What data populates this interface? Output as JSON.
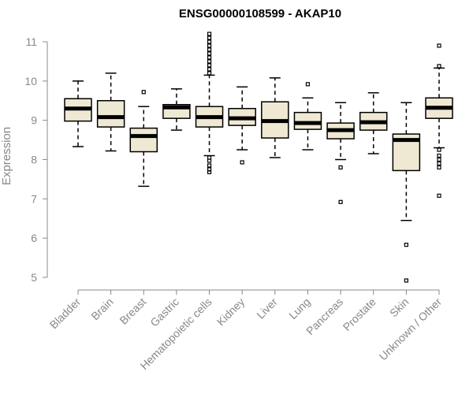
{
  "chart_data": {
    "type": "box",
    "title": "ENSG00000108599 - AKAP10",
    "xlabel": "",
    "ylabel": "Expression",
    "ylim": [
      4.9,
      11.25
    ],
    "yticks": [
      5,
      6,
      7,
      8,
      9,
      10,
      11
    ],
    "grid": false,
    "categories": [
      "Bladder",
      "Brain",
      "Breast",
      "Gastric",
      "Hematopoietic cells",
      "Kidney",
      "Liver",
      "Lung",
      "Pancreas",
      "Prostate",
      "Skin",
      "Unknown / Other"
    ],
    "boxes": [
      {
        "category": "Bladder",
        "whisker_low": 8.33,
        "q1": 8.98,
        "median": 9.3,
        "q3": 9.55,
        "whisker_high": 10.0,
        "outliers": []
      },
      {
        "category": "Brain",
        "whisker_low": 8.22,
        "q1": 8.83,
        "median": 9.08,
        "q3": 9.5,
        "whisker_high": 10.2,
        "outliers": []
      },
      {
        "category": "Breast",
        "whisker_low": 7.32,
        "q1": 8.2,
        "median": 8.6,
        "q3": 8.8,
        "whisker_high": 9.35,
        "outliers": [
          9.72
        ]
      },
      {
        "category": "Gastric",
        "whisker_low": 8.75,
        "q1": 9.05,
        "median": 9.33,
        "q3": 9.4,
        "whisker_high": 9.8,
        "outliers": []
      },
      {
        "category": "Hematopoietic cells",
        "whisker_low": 8.1,
        "q1": 8.83,
        "median": 9.08,
        "q3": 9.35,
        "whisker_high": 10.15,
        "outliers": [
          7.68,
          7.75,
          7.85,
          7.97,
          8.05,
          10.2,
          10.3,
          10.4,
          10.5,
          10.6,
          10.7,
          10.8,
          10.9,
          11.0,
          11.1,
          11.2
        ]
      },
      {
        "category": "Kidney",
        "whisker_low": 8.25,
        "q1": 8.87,
        "median": 9.05,
        "q3": 9.3,
        "whisker_high": 9.85,
        "outliers": [
          7.93
        ]
      },
      {
        "category": "Liver",
        "whisker_low": 8.05,
        "q1": 8.55,
        "median": 8.98,
        "q3": 9.47,
        "whisker_high": 10.08,
        "outliers": []
      },
      {
        "category": "Lung",
        "whisker_low": 8.25,
        "q1": 8.77,
        "median": 8.93,
        "q3": 9.2,
        "whisker_high": 9.57,
        "outliers": [
          9.92
        ]
      },
      {
        "category": "Pancreas",
        "whisker_low": 8.0,
        "q1": 8.53,
        "median": 8.75,
        "q3": 8.93,
        "whisker_high": 9.45,
        "outliers": [
          7.8,
          6.92
        ]
      },
      {
        "category": "Prostate",
        "whisker_low": 8.15,
        "q1": 8.75,
        "median": 8.95,
        "q3": 9.2,
        "whisker_high": 9.7,
        "outliers": []
      },
      {
        "category": "Skin",
        "whisker_low": 6.45,
        "q1": 7.72,
        "median": 8.5,
        "q3": 8.65,
        "whisker_high": 9.45,
        "outliers": [
          5.83,
          4.92
        ]
      },
      {
        "category": "Unknown / Other",
        "whisker_low": 8.3,
        "q1": 9.05,
        "median": 9.32,
        "q3": 9.57,
        "whisker_high": 10.33,
        "outliers": [
          10.38,
          10.9,
          8.25,
          8.1,
          8.0,
          7.9,
          7.8,
          7.08
        ]
      }
    ],
    "colors": {
      "box_fill": "#efe9d3",
      "axis": "#888888",
      "text": "#000000"
    }
  }
}
